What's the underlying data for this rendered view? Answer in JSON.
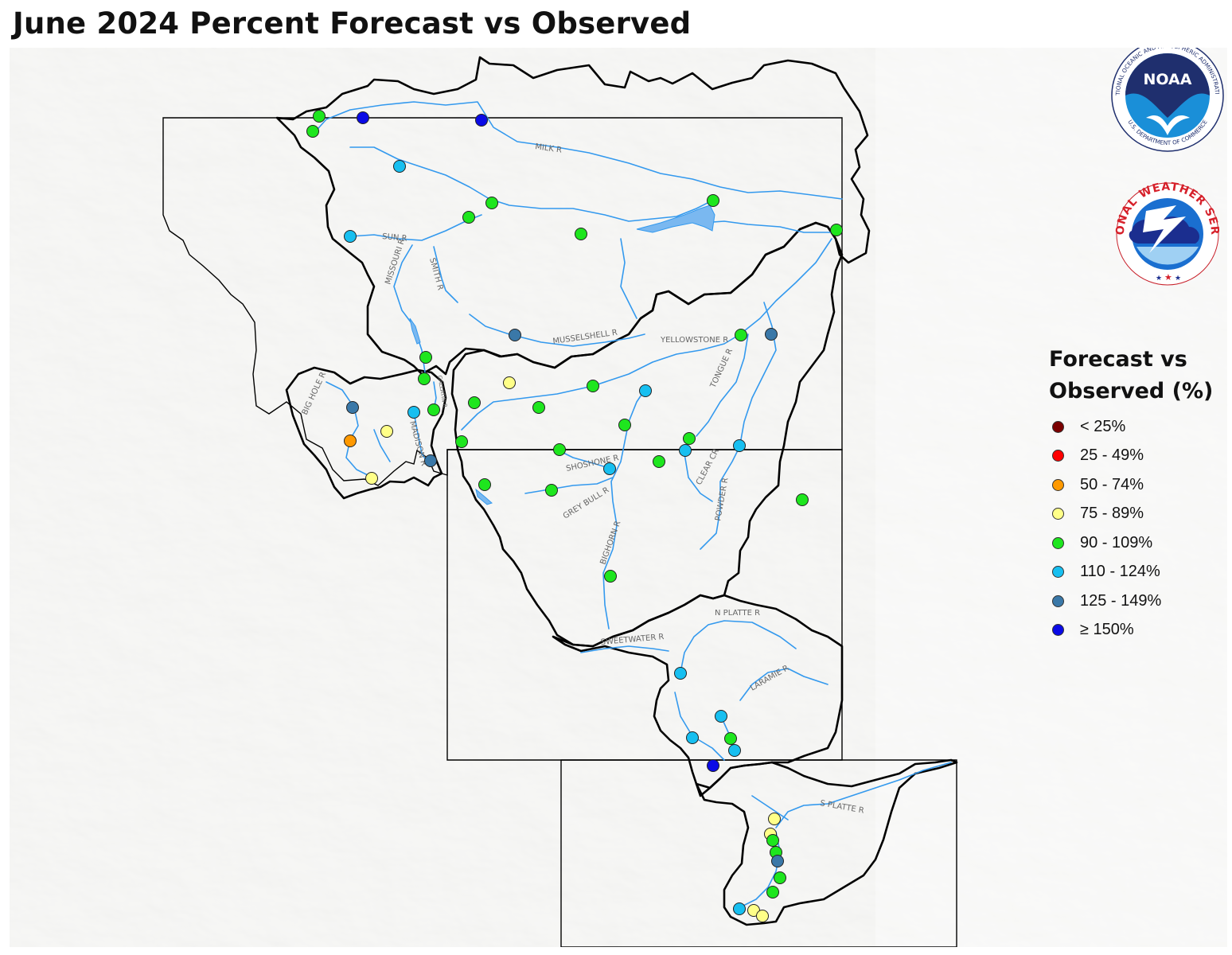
{
  "title": "June 2024 Percent Forecast vs Observed",
  "logos": {
    "noaa": {
      "text": "NOAA",
      "ring_text": "NATIONAL OCEANIC AND ATMOSPHERIC ADMINISTRATION",
      "ring_text_bottom": "U.S. DEPARTMENT OF COMMERCE"
    },
    "nws": {
      "ring_text": "NATIONAL WEATHER SERVICE"
    }
  },
  "legend": {
    "title_line1": "Forecast vs",
    "title_line2": "Observed (%)",
    "classes": [
      {
        "label": "< 25%",
        "color": "#7a0000"
      },
      {
        "label": "25 - 49%",
        "color": "#ff0000"
      },
      {
        "label": "50 - 74%",
        "color": "#ff9900"
      },
      {
        "label": "75 - 89%",
        "color": "#ffff88"
      },
      {
        "label": "90 - 109%",
        "color": "#1ee61e"
      },
      {
        "label": "110 - 124%",
        "color": "#17bff0"
      },
      {
        "label": "125 - 149%",
        "color": "#3a78a8"
      },
      {
        "label": "≥ 150%",
        "color": "#0a0ae6"
      }
    ]
  },
  "river_labels": [
    "MILK R",
    "SUN R",
    "MISSOURI R",
    "SMITH R",
    "MUSSELSHELL R",
    "YELLOWSTONE R",
    "TONGUE R",
    "BIG HOLE R",
    "GALLATIN R",
    "MADISON R",
    "SHOSHONE R",
    "GREY BULL R",
    "BIGHORN R",
    "CLEAR CR",
    "POWDER R",
    "N PLATTE R",
    "SWEETWATER R",
    "LARAMIE R",
    "S PLATTE R"
  ],
  "colors": {
    "river": "#3399ee",
    "basin_outline": "#000000",
    "state_outline": "#000000",
    "terrain": "#f5f5f3"
  }
}
